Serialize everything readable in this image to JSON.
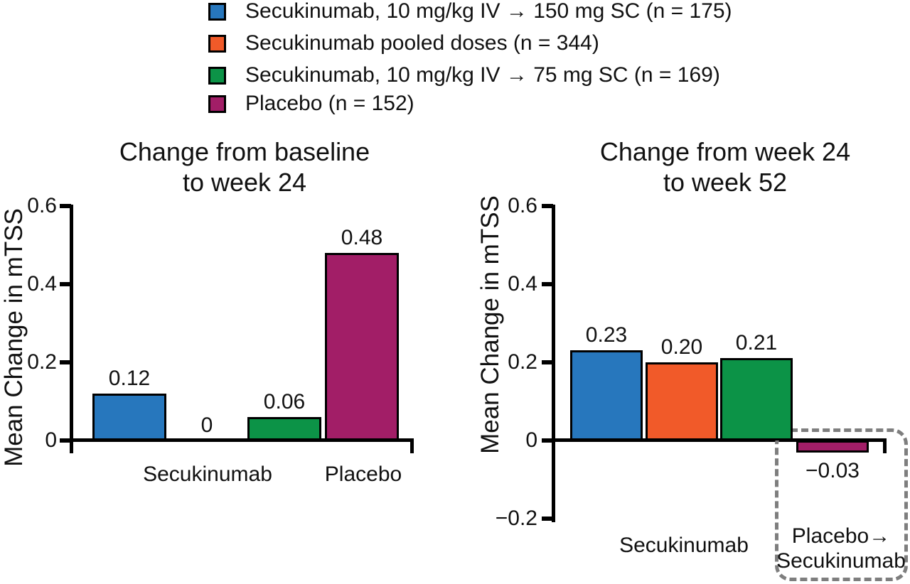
{
  "figure": {
    "background": "#FFFFFF",
    "text_color": "#111111",
    "axis_color": "#000000",
    "highlight_box_color": "#7E7E7E"
  },
  "legend": {
    "position": "top",
    "items": [
      {
        "label": "Secukinumab, 10 mg/kg IV → 150 mg SC (n = 175)",
        "color": "#2777BD",
        "swatch": "blue-square"
      },
      {
        "label": "Secukinumab pooled doses (n = 344)",
        "color": "#F15A29",
        "swatch": "orange-square"
      },
      {
        "label": "Secukinumab, 10 mg/kg IV → 75 mg SC (n = 169)",
        "color": "#0C9347",
        "swatch": "green-square"
      },
      {
        "label": "Placebo (n = 152)",
        "color": "#A21E67",
        "swatch": "magenta-square"
      }
    ]
  },
  "chart_data": [
    {
      "type": "bar",
      "title": "Change from baseline to week 24",
      "title_lines": [
        "Change from baseline",
        "to week 24"
      ],
      "ylabel": "Mean Change in mTSS",
      "xlabel": "",
      "ylim": [
        0,
        0.6
      ],
      "yticks": [
        0.6,
        0.4,
        0.2,
        0
      ],
      "ytick_labels": [
        "0.6",
        "0.4",
        "0.2",
        "0"
      ],
      "grid": false,
      "categories": [
        "Secukinumab 10 mg/kg IV → 150 mg SC",
        "Secukinumab pooled doses",
        "Secukinumab 10 mg/kg IV → 75 mg SC",
        "Placebo"
      ],
      "series": [
        {
          "name": "Secukinumab, 10 mg/kg IV → 150 mg SC (n = 175)",
          "value": 0.12,
          "label": "0.12",
          "color": "#2777BD"
        },
        {
          "name": "Secukinumab pooled doses (n = 344)",
          "value": 0,
          "label": "0",
          "color": "#F15A29"
        },
        {
          "name": "Secukinumab, 10 mg/kg IV → 75 mg SC (n = 169)",
          "value": 0.06,
          "label": "0.06",
          "color": "#0C9347"
        },
        {
          "name": "Placebo (n = 152)",
          "value": 0.48,
          "label": "0.48",
          "color": "#A21E67"
        }
      ],
      "xlabels": {
        "group1": "Secukinumab",
        "group2": "Placebo"
      }
    },
    {
      "type": "bar",
      "title": "Change from week 24 to week 52",
      "title_lines": [
        "Change from week 24",
        "to week 52"
      ],
      "ylabel": "Mean Change in mTSS",
      "xlabel": "",
      "ylim": [
        -0.2,
        0.6
      ],
      "yticks": [
        0.6,
        0.4,
        0.2,
        0,
        -0.2
      ],
      "ytick_labels": [
        "0.6",
        "0.4",
        "0.2",
        "0",
        "−0.2"
      ],
      "grid": false,
      "categories": [
        "Secukinumab 10 mg/kg IV → 150 mg SC",
        "Secukinumab pooled doses",
        "Secukinumab 10 mg/kg IV → 75 mg SC",
        "Placebo → Secukinumab"
      ],
      "series": [
        {
          "name": "Secukinumab, 10 mg/kg IV → 150 mg SC (n = 175)",
          "value": 0.23,
          "label": "0.23",
          "color": "#2777BD"
        },
        {
          "name": "Secukinumab pooled doses (n = 344)",
          "value": 0.2,
          "label": "0.20",
          "color": "#F15A29"
        },
        {
          "name": "Secukinumab, 10 mg/kg IV → 75 mg SC (n = 169)",
          "value": 0.21,
          "label": "0.21",
          "color": "#0C9347"
        },
        {
          "name": "Placebo (n = 152)",
          "value": -0.03,
          "label": "−0.03",
          "color": "#A21E67"
        }
      ],
      "xlabels": {
        "group1": "Secukinumab",
        "group2_line1": "Placebo→",
        "group2_line2": "Secukinumab"
      },
      "highlight": {
        "style": "dashed-rounded-box",
        "color": "#7E7E7E",
        "encloses": "Placebo→Secukinumab bar and label"
      }
    }
  ]
}
